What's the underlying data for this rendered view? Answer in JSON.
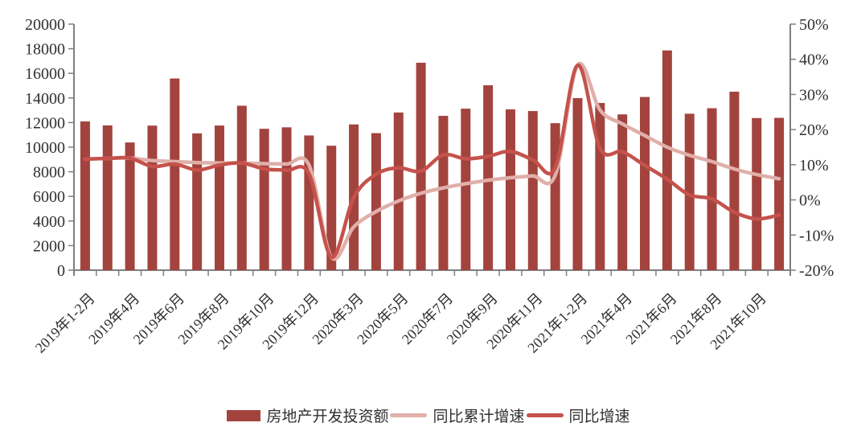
{
  "chart_data": {
    "type": "bar",
    "subtype": "bar-line-combo",
    "title": "",
    "grid": false,
    "categories": [
      "2019年1-2月",
      "2019年3月",
      "2019年4月",
      "2019年5月",
      "2019年6月",
      "2019年7月",
      "2019年8月",
      "2019年9月",
      "2019年10月",
      "2019年11月",
      "2019年12月",
      "2020年1-2月",
      "2020年3月",
      "2020年4月",
      "2020年5月",
      "2020年6月",
      "2020年7月",
      "2020年8月",
      "2020年9月",
      "2020年10月",
      "2020年11月",
      "2020年12月",
      "2021年1-2月",
      "2021年3月",
      "2021年4月",
      "2021年5月",
      "2021年6月",
      "2021年7月",
      "2021年8月",
      "2021年9月",
      "2021年10月",
      "2021年11月"
    ],
    "series": [
      {
        "name": "房地产开发投资额",
        "chart_type": "bar",
        "axis": "left",
        "color": "#A3433E",
        "values": [
          12090,
          11768,
          10379,
          11751,
          15582,
          11122,
          11758,
          13366,
          11491,
          11612,
          10951,
          10115,
          11848,
          11140,
          12817,
          16860,
          12545,
          13129,
          15030,
          13072,
          12936,
          11951,
          13986,
          13590,
          12664,
          14078,
          17861,
          12716,
          13165,
          14508,
          12366,
          12380
        ]
      },
      {
        "name": "同比累计增速",
        "chart_type": "line",
        "axis": "right",
        "color": "#E0AFAA",
        "values": [
          11.6,
          11.8,
          11.9,
          11.2,
          10.9,
          10.6,
          10.5,
          10.5,
          10.3,
          10.2,
          9.9,
          -16.3,
          -7.7,
          -3.3,
          -0.3,
          1.9,
          3.4,
          4.6,
          5.6,
          6.3,
          6.8,
          7.0,
          38.3,
          25.6,
          21.6,
          18.3,
          15.0,
          12.7,
          10.9,
          8.8,
          7.2,
          6.0
        ]
      },
      {
        "name": "同比增速",
        "chart_type": "line",
        "axis": "right",
        "color": "#C5524C",
        "values": [
          11.6,
          11.8,
          11.9,
          9.5,
          10.2,
          8.5,
          9.9,
          10.5,
          8.8,
          8.4,
          7.4,
          -16.3,
          0.7,
          7.3,
          9.1,
          8.2,
          12.8,
          11.7,
          12.4,
          13.8,
          11.4,
          9.1,
          38.3,
          14.7,
          13.7,
          9.8,
          5.9,
          1.4,
          0.3,
          -3.5,
          -5.4,
          -4.3
        ]
      }
    ],
    "left_axis": {
      "min": 0,
      "max": 20000,
      "tick_labels": [
        "0",
        "2000",
        "4000",
        "6000",
        "8000",
        "10000",
        "12000",
        "14000",
        "16000",
        "18000",
        "20000"
      ]
    },
    "right_axis": {
      "min": -20,
      "max": 50,
      "tick_labels": [
        "50%",
        "40%",
        "30%",
        "20%",
        "10%",
        "0%",
        "-10%",
        "-20%"
      ]
    },
    "x_tick_labels": [
      "2019年1-2月",
      "2019年4月",
      "2019年6月",
      "2019年8月",
      "2019年10月",
      "2019年12月",
      "2020年3月",
      "2020年5月",
      "2020年7月",
      "2020年9月",
      "2020年11月",
      "2021年1-2月",
      "2021年4月",
      "2021年6月",
      "2021年8月",
      "2021年10月"
    ],
    "legend": {
      "position": "bottom",
      "items": [
        {
          "label": "房地产开发投资额",
          "swatch": "bar"
        },
        {
          "label": "同比累计增速",
          "swatch": "line"
        },
        {
          "label": "同比增速",
          "swatch": "line"
        }
      ]
    }
  },
  "colors": {
    "axis": "#7F7F7F",
    "text": "#303030",
    "background": "#FFFFFF"
  }
}
